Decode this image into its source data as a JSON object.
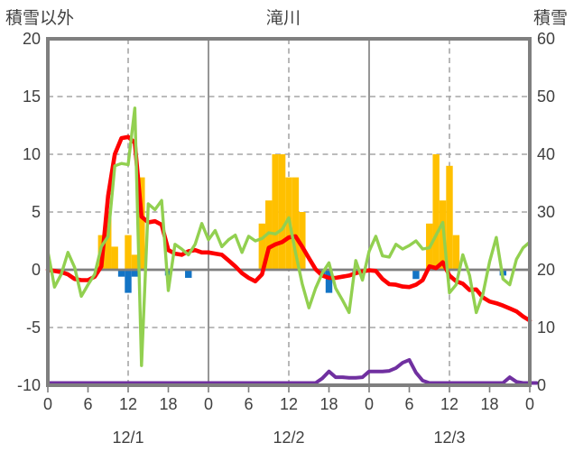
{
  "header": {
    "left_axis_title": "積雪以外",
    "chart_title": "滝川",
    "right_axis_title": "積雪"
  },
  "colors": {
    "red_line": "#fe0000",
    "green_line": "#92d050",
    "orange_bars": "#ffc000",
    "blue_bars": "#1374c5",
    "purple_line": "#7030a0",
    "grid": "#a6a6a6",
    "axis": "#7f7f7f",
    "text": "#404040"
  },
  "chart_data": {
    "type": "combo",
    "title": "滝川",
    "hours": 72,
    "grid": "dashed horizontal and noon verticals, solid midnight verticals",
    "legend_position": "none",
    "left_axis": {
      "title": "積雪以外",
      "min": -10,
      "max": 20,
      "ticks": [
        20,
        15,
        10,
        5,
        0,
        -5,
        -10
      ]
    },
    "right_axis": {
      "title": "積雪",
      "min": 0,
      "max": 60,
      "ticks": [
        60,
        50,
        40,
        30,
        20,
        10,
        0
      ]
    },
    "x_axis": {
      "tick_interval_hours": 6,
      "tick_labels": [
        "0",
        "6",
        "12",
        "18",
        "0",
        "6",
        "12",
        "18",
        "0",
        "6",
        "12",
        "18",
        "0"
      ],
      "day_labels": [
        "12/1",
        "12/2",
        "12/3"
      ],
      "day_label_hours": [
        12,
        36,
        60
      ],
      "solid_gridline_hours": [
        24,
        48
      ],
      "dashed_gridline_hours": [
        12,
        36,
        60
      ]
    },
    "series": [
      {
        "id": "orange_bars",
        "type": "bar",
        "axis": "left",
        "color": "#ffc000",
        "points": [
          [
            8,
            3
          ],
          [
            9,
            5
          ],
          [
            10,
            2
          ],
          [
            12,
            3
          ],
          [
            13,
            1.3
          ],
          [
            14,
            8
          ],
          [
            32,
            4
          ],
          [
            33,
            6
          ],
          [
            34,
            10
          ],
          [
            35,
            10
          ],
          [
            36,
            8
          ],
          [
            37,
            8
          ],
          [
            38,
            5
          ],
          [
            57,
            4
          ],
          [
            58,
            10
          ],
          [
            59,
            6
          ],
          [
            60,
            9
          ],
          [
            61,
            3
          ]
        ]
      },
      {
        "id": "blue_bars",
        "type": "bar",
        "axis": "left",
        "color": "#1374c5",
        "points": [
          [
            11,
            -0.6
          ],
          [
            12,
            -2
          ],
          [
            13,
            -0.6
          ],
          [
            18,
            -0.5
          ],
          [
            21,
            -0.7
          ],
          [
            41,
            -0.5
          ],
          [
            42,
            -2
          ],
          [
            46,
            -0.4
          ],
          [
            55,
            -0.8
          ],
          [
            68,
            -0.5
          ]
        ]
      },
      {
        "id": "red_line",
        "type": "line",
        "axis": "left",
        "color": "#fe0000",
        "width": 4.6,
        "values_hourly": [
          0,
          -0.1,
          -0.2,
          -0.4,
          -0.8,
          -0.9,
          -0.9,
          -0.6,
          0.3,
          6.4,
          10,
          11.4,
          11.5,
          11,
          4.6,
          4.1,
          4.2,
          3.9,
          1.7,
          1.4,
          1.3,
          1.6,
          1.7,
          1.5,
          1.5,
          1.4,
          1.3,
          0.8,
          0.3,
          -0.3,
          -0.7,
          -1,
          -0.4,
          1.9,
          2.2,
          2.4,
          2.8,
          2.9,
          2,
          1,
          0.05,
          -0.5,
          -0.7,
          -0.7,
          -0.6,
          -0.5,
          -0.3,
          -0.15,
          -0.05,
          -0.1,
          -0.8,
          -1.25,
          -1.3,
          -1.45,
          -1.5,
          -1.3,
          -0.9,
          0.3,
          0.15,
          0.65,
          -0.5,
          -1,
          -1.2,
          -1.75,
          -1.7,
          -2.4,
          -2.75,
          -2.9,
          -3.1,
          -3.35,
          -3.6,
          -4.05,
          -4.4
        ]
      },
      {
        "id": "green_line",
        "type": "line",
        "axis": "left",
        "color": "#92d050",
        "width": 3.4,
        "values_hourly": [
          1.6,
          -1.5,
          -0.4,
          1.5,
          0.2,
          -2.3,
          -1.3,
          -0.4,
          2,
          2.9,
          9,
          9.2,
          9.1,
          14,
          -8.3,
          5.7,
          5.2,
          6,
          -1.8,
          2.2,
          1.8,
          1.3,
          2.2,
          4,
          2.6,
          3.4,
          2,
          2.6,
          3,
          1.5,
          2.9,
          2.5,
          2.7,
          3.2,
          3.1,
          3.5,
          4.5,
          1.5,
          -1.2,
          -3.3,
          -1.6,
          -0.3,
          0.6,
          -1.6,
          -2.6,
          -3.7,
          0.8,
          -0.9,
          1.6,
          2.9,
          1.2,
          1.1,
          2.2,
          1.8,
          2.1,
          2.5,
          1.8,
          1.9,
          3,
          4.1,
          -2,
          -1.3,
          1.3,
          -0.5,
          -3.7,
          -2.1,
          0.7,
          2.8,
          -0.8,
          -1.3,
          0.9,
          1.9,
          2.4
        ]
      },
      {
        "id": "purple_line",
        "type": "line",
        "axis": "right",
        "color": "#7030a0",
        "width": 4,
        "values_hourly": [
          0,
          0,
          0,
          0,
          0,
          0,
          0,
          0,
          0,
          0,
          0,
          0,
          0,
          0,
          0,
          0,
          0,
          0,
          0,
          0,
          0,
          0,
          0,
          0,
          0,
          0,
          0,
          0,
          0,
          0,
          0,
          0,
          0,
          0,
          0,
          0,
          0,
          0,
          0,
          0,
          0,
          0.8,
          2,
          1,
          1,
          0.9,
          0.9,
          1,
          2,
          2,
          2,
          2.1,
          2.6,
          3.5,
          4,
          1.8,
          0.4,
          0,
          0,
          0,
          0,
          0,
          0,
          0,
          0,
          0,
          0,
          0,
          0,
          1,
          0.2,
          0,
          0,
          0
        ]
      }
    ]
  }
}
